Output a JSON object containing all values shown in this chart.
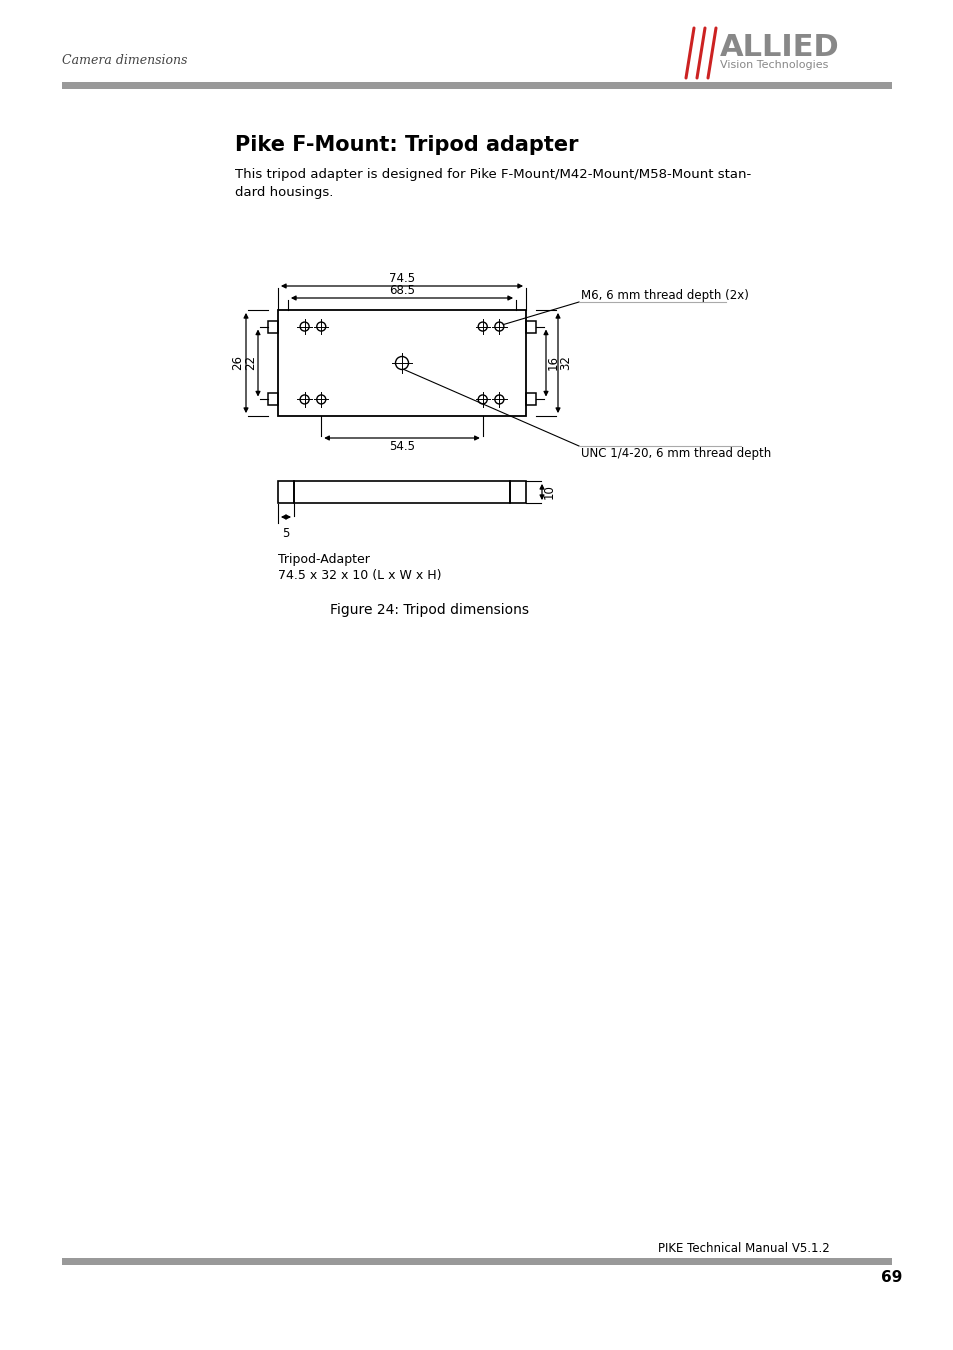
{
  "title": "Pike F-Mount: Tripod adapter",
  "subtitle": "This tripod adapter is designed for Pike F-Mount/M42-Mount/M58-Mount stan-\ndard housings.",
  "figure_caption": "Figure 24: Tripod dimensions",
  "header_left": "Camera dimensions",
  "footer_text": "PIKE Technical Manual V5.1.2",
  "footer_page": "69",
  "tripod_label_line1": "Tripod-Adapter",
  "tripod_label_line2": "74.5 x 32 x 10 (L x W x H)",
  "dim_74_5": "74.5",
  "dim_68_5": "68.5",
  "dim_54_5": "54.5",
  "dim_26": "26",
  "dim_22": "22",
  "dim_16": "16",
  "dim_32": "32",
  "dim_5": "5",
  "dim_10": "10",
  "note_m6": "M6, 6 mm thread depth (2x)",
  "note_unc": "UNC 1/4-20, 6 mm thread depth",
  "bar_color": "#999999",
  "text_color": "#000000",
  "bg_color": "#ffffff",
  "red_color": "#cc2222",
  "gray_color": "#888888"
}
